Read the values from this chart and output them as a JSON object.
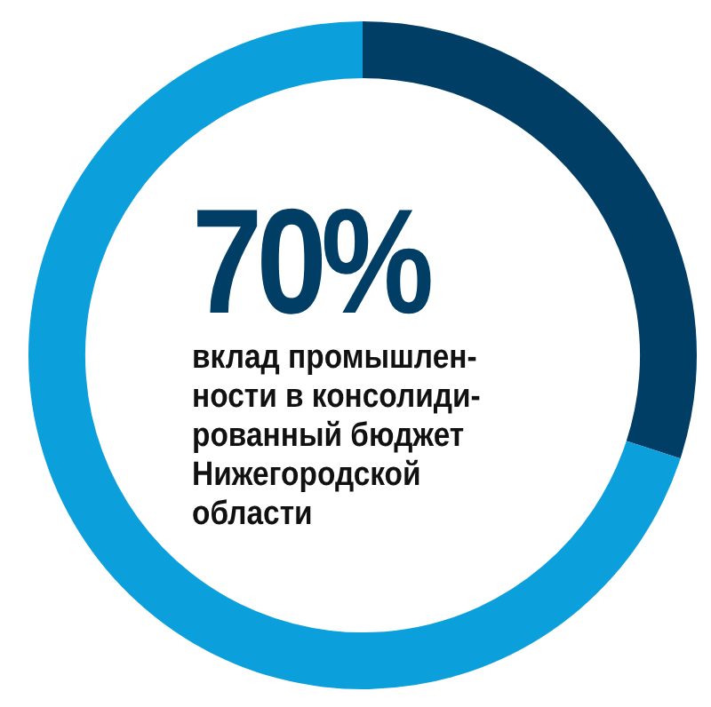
{
  "chart_data": {
    "type": "donut",
    "categories": [
      null,
      null
    ],
    "values": [
      30,
      70
    ],
    "colors": [
      "#003e66",
      "#0b9fdc"
    ],
    "value_labels": [
      null,
      "70%"
    ],
    "annotations": [
      "вклад промышлен-\nности в консолиди-\nрованный бюджет\nНижегородской\nобласти"
    ],
    "legend": false
  }
}
